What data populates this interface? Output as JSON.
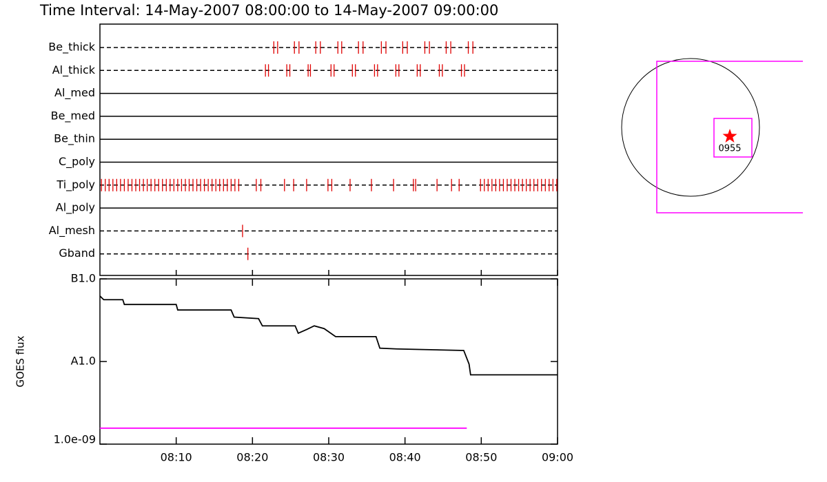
{
  "chart_data": [
    {
      "type": "timeline",
      "title": "Time Interval: 14-May-2007 08:00:00 to 14-May-2007 09:00:00",
      "xlim": [
        0,
        60
      ],
      "xticks": [
        {
          "value": 10,
          "label": "08:10"
        },
        {
          "value": 20,
          "label": "08:20"
        },
        {
          "value": 30,
          "label": "08:30"
        },
        {
          "value": 40,
          "label": "08:40"
        },
        {
          "value": 50,
          "label": "08:50"
        },
        {
          "value": 60,
          "label": "09:00"
        }
      ],
      "color": "#e00000",
      "rows": [
        {
          "name": "Be_thick",
          "line": "dashed",
          "x": [
            22.8,
            23.3,
            25.5,
            26.1,
            28.3,
            28.9,
            31.2,
            31.7,
            33.9,
            34.5,
            36.9,
            37.5,
            39.7,
            40.3,
            42.6,
            43.2,
            45.4,
            46.0,
            48.3,
            48.9
          ]
        },
        {
          "name": "Al_thick",
          "line": "dashed",
          "x": [
            21.7,
            22.1,
            24.5,
            24.9,
            27.3,
            27.6,
            30.3,
            30.7,
            33.1,
            33.5,
            36.0,
            36.4,
            38.8,
            39.2,
            41.6,
            42.0,
            44.5,
            44.9,
            47.4,
            47.8
          ]
        },
        {
          "name": "Al_med",
          "line": "solid",
          "x": []
        },
        {
          "name": "Be_med",
          "line": "solid",
          "x": []
        },
        {
          "name": "Be_thin",
          "line": "solid",
          "x": []
        },
        {
          "name": "C_poly",
          "line": "solid",
          "x": []
        },
        {
          "name": "Ti_poly",
          "line": "dashed",
          "x": [
            0.2,
            0.7,
            1.2,
            1.7,
            2.2,
            2.7,
            3.2,
            3.7,
            4.2,
            4.7,
            5.2,
            5.7,
            6.2,
            6.7,
            7.2,
            7.7,
            8.2,
            8.7,
            9.2,
            9.7,
            10.2,
            10.7,
            11.2,
            11.7,
            12.2,
            12.7,
            13.2,
            13.7,
            14.2,
            14.7,
            15.2,
            15.7,
            16.2,
            16.7,
            17.2,
            17.7,
            18.2,
            20.5,
            21.1,
            24.2,
            25.4,
            27.1,
            29.9,
            30.4,
            32.8,
            35.6,
            38.5,
            41.1,
            41.4,
            44.2,
            46.1,
            47.1,
            49.9,
            50.4,
            50.9,
            51.4,
            51.9,
            52.4,
            52.9,
            53.4,
            53.9,
            54.4,
            54.9,
            55.4,
            55.9,
            56.4,
            56.9,
            57.4,
            57.9,
            58.4,
            58.9,
            59.4,
            59.9
          ]
        },
        {
          "name": "Al_poly",
          "line": "solid",
          "x": []
        },
        {
          "name": "Al_mesh",
          "line": "dashed",
          "x": [
            18.7
          ]
        },
        {
          "name": "Gband",
          "line": "dashed",
          "x": [
            19.4
          ]
        }
      ]
    },
    {
      "type": "line",
      "ylabel": "GOES flux",
      "log": true,
      "xlim": [
        0,
        60
      ],
      "xticks": [
        {
          "value": 10,
          "label": "08:10"
        },
        {
          "value": 20,
          "label": "08:20"
        },
        {
          "value": 30,
          "label": "08:30"
        },
        {
          "value": 40,
          "label": "08:40"
        },
        {
          "value": 50,
          "label": "08:50"
        },
        {
          "value": 60,
          "label": "09:00"
        }
      ],
      "ylim": [
        1e-09,
        1e-07
      ],
      "yticks": [
        {
          "value": 1e-09,
          "label": "1.0e-09"
        },
        {
          "value": 1e-08,
          "label": "A1.0"
        },
        {
          "value": 1e-07,
          "label": "B1.0"
        }
      ],
      "series": [
        {
          "color": "#000000",
          "x": [
            0,
            0.5,
            3.0,
            3.2,
            10.0,
            10.2,
            17.2,
            17.6,
            20.8,
            21.3,
            25.6,
            26.0,
            27.1,
            28.1,
            29.4,
            30.9,
            36.2,
            36.7,
            38.9,
            47.7,
            48.4,
            48.6,
            60.0
          ],
          "values": [
            6.2e-08,
            5.6e-08,
            5.6e-08,
            4.9e-08,
            4.9e-08,
            4.2e-08,
            4.2e-08,
            3.45e-08,
            3.3e-08,
            2.7e-08,
            2.7e-08,
            2.2e-08,
            2.44e-08,
            2.7e-08,
            2.5e-08,
            2e-08,
            2e-08,
            1.45e-08,
            1.42e-08,
            1.36e-08,
            9.3e-09,
            6.9e-09,
            6.9e-09
          ]
        },
        {
          "color": "#ff00ff",
          "x": [
            0,
            48.1
          ],
          "values": [
            1.56e-09,
            1.56e-09
          ]
        }
      ]
    },
    {
      "type": "pointing",
      "label": "0955"
    }
  ]
}
